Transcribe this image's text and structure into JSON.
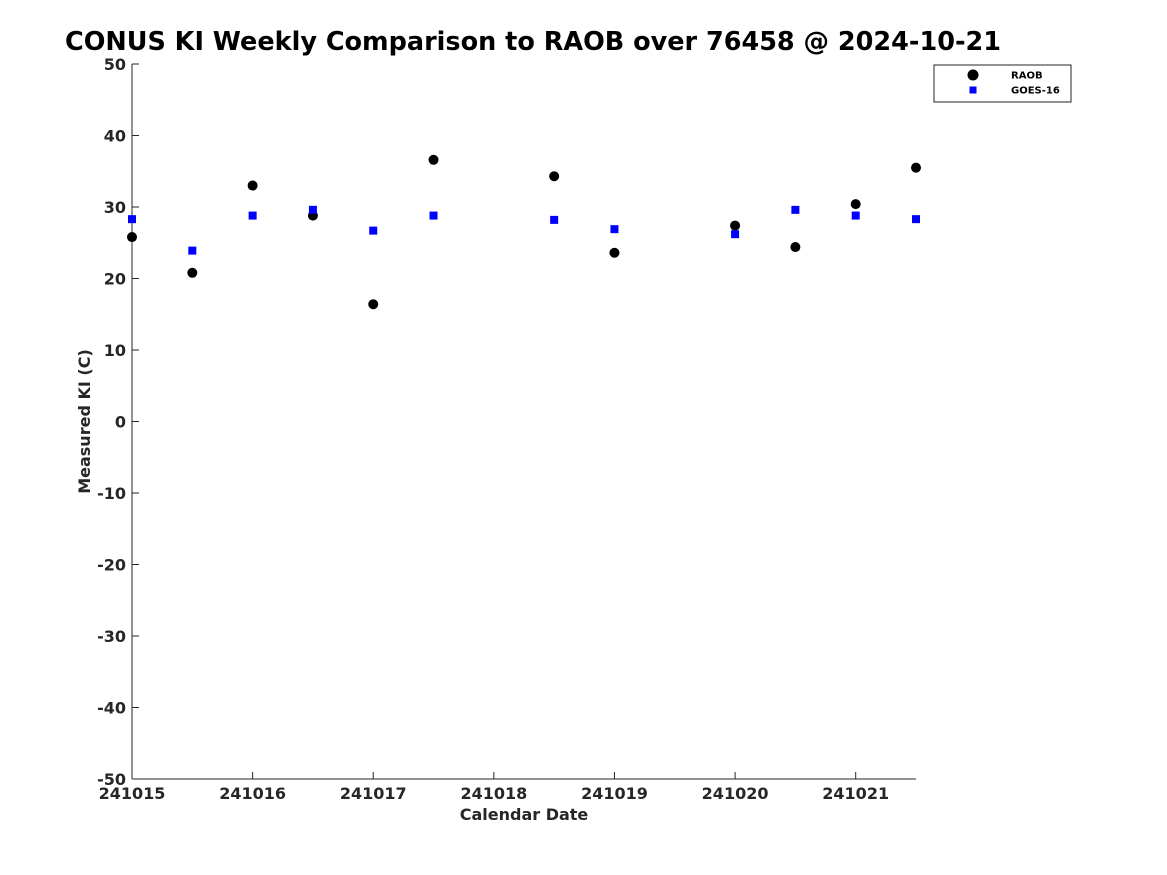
{
  "chart_data": {
    "type": "scatter",
    "title": "CONUS KI Weekly Comparison to RAOB over 76458 @ 2024-10-21",
    "xlabel": "Calendar Date",
    "ylabel": "Measured KI (C)",
    "xlim": [
      0,
      6.5
    ],
    "ylim": [
      -50,
      50
    ],
    "x_ticks": [
      {
        "value": 0,
        "label": "241015"
      },
      {
        "value": 1,
        "label": "241016"
      },
      {
        "value": 2,
        "label": "241017"
      },
      {
        "value": 3,
        "label": "241018"
      },
      {
        "value": 4,
        "label": "241019"
      },
      {
        "value": 5,
        "label": "241020"
      },
      {
        "value": 6,
        "label": "241021"
      }
    ],
    "y_ticks": [
      50,
      40,
      30,
      20,
      10,
      0,
      -10,
      -20,
      -30,
      -40,
      -50
    ],
    "grid": false,
    "legend": "top-right",
    "series": [
      {
        "name": "RAOB",
        "marker": "circle",
        "color": "#000000",
        "points": [
          {
            "x": 0,
            "y": 25.8
          },
          {
            "x": 0.5,
            "y": 20.8
          },
          {
            "x": 1,
            "y": 33.0
          },
          {
            "x": 1.5,
            "y": 28.8
          },
          {
            "x": 2,
            "y": 16.4
          },
          {
            "x": 2.5,
            "y": 36.6
          },
          {
            "x": 3.5,
            "y": 34.3
          },
          {
            "x": 4,
            "y": 23.6
          },
          {
            "x": 5,
            "y": 27.4
          },
          {
            "x": 5.5,
            "y": 24.4
          },
          {
            "x": 6,
            "y": 30.4
          },
          {
            "x": 6.5,
            "y": 35.5
          }
        ]
      },
      {
        "name": "GOES-16",
        "marker": "square",
        "color": "#0000ff",
        "points": [
          {
            "x": 0,
            "y": 28.3
          },
          {
            "x": 0.5,
            "y": 23.9
          },
          {
            "x": 1,
            "y": 28.8
          },
          {
            "x": 1.5,
            "y": 29.6
          },
          {
            "x": 2,
            "y": 26.7
          },
          {
            "x": 2.5,
            "y": 28.8
          },
          {
            "x": 3.5,
            "y": 28.2
          },
          {
            "x": 4,
            "y": 26.9
          },
          {
            "x": 5,
            "y": 26.2
          },
          {
            "x": 5.5,
            "y": 29.6
          },
          {
            "x": 6,
            "y": 28.8
          },
          {
            "x": 6.5,
            "y": 28.3
          }
        ]
      }
    ]
  }
}
